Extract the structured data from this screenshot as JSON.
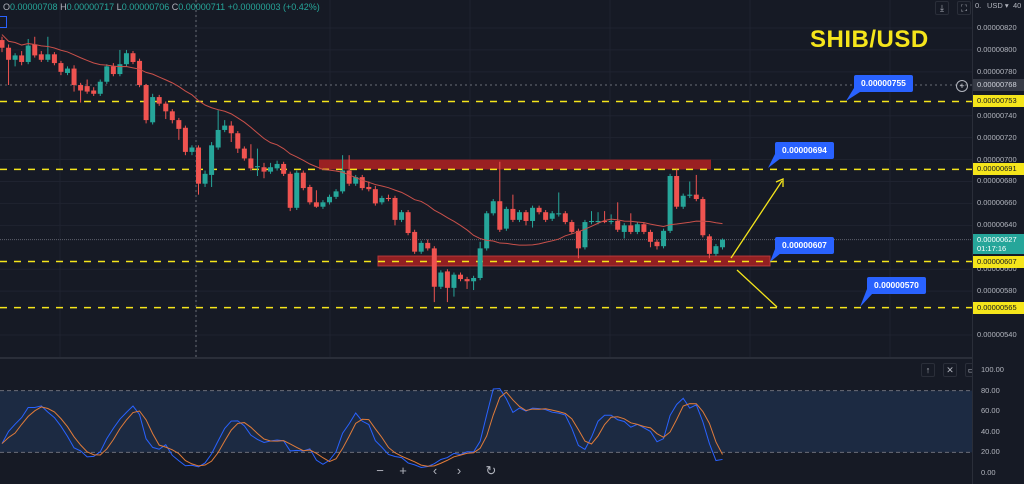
{
  "header": {
    "ohlc": {
      "o_label": "O",
      "o": "0.00000708",
      "h_label": "H",
      "h": "0.00000717",
      "l_label": "L",
      "l": "0.00000706",
      "c_label": "C",
      "c": "0.00000711",
      "change": "+0.00000003 (+0.42%)"
    },
    "currency": "USD ▾",
    "axis_top_left": "0.",
    "axis_top_right": "40"
  },
  "title": "SHIB/USD",
  "colors": {
    "background": "#161a25",
    "up": "#26a69a",
    "down": "#ef5350",
    "ma": "#c9504a",
    "level": "#f5e51b",
    "callout": "#2962ff",
    "zone": "#b22222",
    "stoch_k": "#2962ff",
    "stoch_d": "#e07b39",
    "stoch_band": "#1c2a42"
  },
  "chart_data": [
    {
      "type": "candlestick",
      "title": "SHIB/USD",
      "ylim": [
        5.3e-06,
        8.4e-06
      ],
      "y_ticks": [
        "0.00000820",
        "0.00000800",
        "0.00000780",
        "0.00000740",
        "0.00000720",
        "0.00000700",
        "0.00000680",
        "0.00000660",
        "0.00000640",
        "0.00000600",
        "0.00000580",
        "0.00000540"
      ],
      "y_ticks_values": [
        8.2e-06,
        8e-06,
        7.8e-06,
        7.4e-06,
        7.2e-06,
        7e-06,
        6.8e-06,
        6.6e-06,
        6.4e-06,
        6e-06,
        5.8e-06,
        5.4e-06
      ],
      "ohlc": [
        [
          8.09e-06,
          8.12e-06,
          7.98e-06,
          8.02e-06
        ],
        [
          8.02e-06,
          8.05e-06,
          7.68e-06,
          7.91e-06
        ],
        [
          7.91e-06,
          7.97e-06,
          7.85e-06,
          7.95e-06
        ],
        [
          7.95e-06,
          7.99e-06,
          7.86e-06,
          7.89e-06
        ],
        [
          7.89e-06,
          8.1e-06,
          7.87e-06,
          8.04e-06
        ],
        [
          8.05e-06,
          8.12e-06,
          7.93e-06,
          7.95e-06
        ],
        [
          7.96e-06,
          7.99e-06,
          7.89e-06,
          7.91e-06
        ],
        [
          7.91e-06,
          8.12e-06,
          7.89e-06,
          7.96e-06
        ],
        [
          7.96e-06,
          7.98e-06,
          7.86e-06,
          7.88e-06
        ],
        [
          7.88e-06,
          7.9e-06,
          7.77e-06,
          7.8e-06
        ],
        [
          7.79e-06,
          7.85e-06,
          7.77e-06,
          7.83e-06
        ],
        [
          7.83e-06,
          7.86e-06,
          7.62e-06,
          7.68e-06
        ],
        [
          7.68e-06,
          7.7e-06,
          7.52e-06,
          7.63e-06
        ],
        [
          7.67e-06,
          7.73e-06,
          7.6e-06,
          7.62e-06
        ],
        [
          7.63e-06,
          7.66e-06,
          7.58e-06,
          7.6e-06
        ],
        [
          7.6e-06,
          7.73e-06,
          7.58e-06,
          7.71e-06
        ],
        [
          7.71e-06,
          7.87e-06,
          7.69e-06,
          7.85e-06
        ],
        [
          7.85e-06,
          7.88e-06,
          7.76e-06,
          7.78e-06
        ],
        [
          7.78e-06,
          8e-06,
          7.76e-06,
          7.87e-06
        ],
        [
          7.87e-06,
          8e-06,
          7.85e-06,
          7.97e-06
        ],
        [
          7.97e-06,
          7.99e-06,
          7.87e-06,
          7.89e-06
        ],
        [
          7.9e-06,
          7.92e-06,
          7.66e-06,
          7.68e-06
        ],
        [
          7.68e-06,
          7.69e-06,
          7.33e-06,
          7.36e-06
        ],
        [
          7.34e-06,
          7.6e-06,
          7.32e-06,
          7.57e-06
        ],
        [
          7.57e-06,
          7.59e-06,
          7.49e-06,
          7.51e-06
        ],
        [
          7.51e-06,
          7.53e-06,
          7.37e-06,
          7.44e-06
        ],
        [
          7.44e-06,
          7.46e-06,
          7.33e-06,
          7.36e-06
        ],
        [
          7.36e-06,
          7.38e-06,
          7.18e-06,
          7.28e-06
        ],
        [
          7.29e-06,
          7.31e-06,
          7.04e-06,
          7.07e-06
        ],
        [
          7.07e-06,
          7.13e-06,
          7.04e-06,
          7.11e-06
        ],
        [
          7.11e-06,
          7.13e-06,
          6.68e-06,
          6.78e-06
        ],
        [
          6.78e-06,
          6.9e-06,
          6.75e-06,
          6.87e-06
        ],
        [
          6.86e-06,
          7.16e-06,
          6.75e-06,
          7.13e-06
        ],
        [
          7.11e-06,
          7.45e-06,
          7.09e-06,
          7.27e-06
        ],
        [
          7.27e-06,
          7.36e-06,
          7.25e-06,
          7.31e-06
        ],
        [
          7.31e-06,
          7.35e-06,
          7.16e-06,
          7.24e-06
        ],
        [
          7.24e-06,
          7.26e-06,
          7.06e-06,
          7.1e-06
        ],
        [
          7.1e-06,
          7.12e-06,
          6.99e-06,
          7.01e-06
        ],
        [
          7.01e-06,
          7.14e-06,
          6.9e-06,
          6.92e-06
        ],
        [
          6.93e-06,
          7.1e-06,
          6.85e-06,
          6.94e-06
        ],
        [
          6.93e-06,
          6.97e-06,
          6.83e-06,
          6.89e-06
        ],
        [
          6.89e-06,
          6.97e-06,
          6.87e-06,
          6.93e-06
        ],
        [
          6.92e-06,
          6.99e-06,
          6.9e-06,
          6.96e-06
        ],
        [
          6.96e-06,
          6.98e-06,
          6.85e-06,
          6.87e-06
        ],
        [
          6.87e-06,
          6.89e-06,
          6.53e-06,
          6.56e-06
        ],
        [
          6.56e-06,
          6.9e-06,
          6.54e-06,
          6.88e-06
        ],
        [
          6.88e-06,
          6.9e-06,
          6.72e-06,
          6.74e-06
        ],
        [
          6.75e-06,
          6.77e-06,
          6.59e-06,
          6.61e-06
        ],
        [
          6.61e-06,
          6.72e-06,
          6.56e-06,
          6.57e-06
        ],
        [
          6.57e-06,
          6.63e-06,
          6.55e-06,
          6.61e-06
        ],
        [
          6.61e-06,
          6.68e-06,
          6.59e-06,
          6.66e-06
        ],
        [
          6.66e-06,
          6.73e-06,
          6.64e-06,
          6.71e-06
        ],
        [
          6.71e-06,
          7.04e-06,
          6.69e-06,
          6.9e-06
        ],
        [
          6.9e-06,
          7.04e-06,
          6.76e-06,
          6.78e-06
        ],
        [
          6.78e-06,
          6.86e-06,
          6.76e-06,
          6.84e-06
        ],
        [
          6.84e-06,
          6.86e-06,
          6.72e-06,
          6.74e-06
        ],
        [
          6.75e-06,
          6.8e-06,
          6.71e-06,
          6.73e-06
        ],
        [
          6.73e-06,
          6.76e-06,
          6.58e-06,
          6.6e-06
        ],
        [
          6.61e-06,
          6.67e-06,
          6.59e-06,
          6.65e-06
        ],
        [
          6.65e-06,
          6.68e-06,
          6.62e-06,
          6.64e-06
        ],
        [
          6.65e-06,
          6.67e-06,
          6.4e-06,
          6.45e-06
        ],
        [
          6.45e-06,
          6.54e-06,
          6.43e-06,
          6.52e-06
        ],
        [
          6.52e-06,
          6.54e-06,
          6.31e-06,
          6.33e-06
        ],
        [
          6.34e-06,
          6.36e-06,
          6.14e-06,
          6.16e-06
        ],
        [
          6.16e-06,
          6.26e-06,
          6.14e-06,
          6.24e-06
        ],
        [
          6.24e-06,
          6.27e-06,
          6.17e-06,
          6.19e-06
        ],
        [
          6.19e-06,
          6.21e-06,
          5.7e-06,
          5.84e-06
        ],
        [
          5.84e-06,
          5.99e-06,
          5.82e-06,
          5.97e-06
        ],
        [
          5.98e-06,
          6e-06,
          5.7e-06,
          5.83e-06
        ],
        [
          5.83e-06,
          5.97e-06,
          5.75e-06,
          5.95e-06
        ],
        [
          5.95e-06,
          5.97e-06,
          5.89e-06,
          5.91e-06
        ],
        [
          5.91e-06,
          5.93e-06,
          5.82e-06,
          5.89e-06
        ],
        [
          5.89e-06,
          5.94e-06,
          5.81e-06,
          5.92e-06
        ],
        [
          5.92e-06,
          6.25e-06,
          5.9e-06,
          6.19e-06
        ],
        [
          6.19e-06,
          6.53e-06,
          6.17e-06,
          6.51e-06
        ],
        [
          6.51e-06,
          6.64e-06,
          6.49e-06,
          6.62e-06
        ],
        [
          6.62e-06,
          6.98e-06,
          6.34e-06,
          6.36e-06
        ],
        [
          6.37e-06,
          6.57e-06,
          6.35e-06,
          6.55e-06
        ],
        [
          6.55e-06,
          6.68e-06,
          6.43e-06,
          6.45e-06
        ],
        [
          6.45e-06,
          6.54e-06,
          6.43e-06,
          6.52e-06
        ],
        [
          6.52e-06,
          6.54e-06,
          6.4e-06,
          6.44e-06
        ],
        [
          6.44e-06,
          6.58e-06,
          6.38e-06,
          6.56e-06
        ],
        [
          6.56e-06,
          6.58e-06,
          6.5e-06,
          6.52e-06
        ],
        [
          6.52e-06,
          6.54e-06,
          6.43e-06,
          6.45e-06
        ],
        [
          6.46e-06,
          6.53e-06,
          6.44e-06,
          6.51e-06
        ],
        [
          6.5e-06,
          6.7e-06,
          6.48e-06,
          6.51e-06
        ],
        [
          6.51e-06,
          6.53e-06,
          6.41e-06,
          6.43e-06
        ],
        [
          6.43e-06,
          6.45e-06,
          6.32e-06,
          6.34e-06
        ],
        [
          6.35e-06,
          6.37e-06,
          6.1e-06,
          6.19e-06
        ],
        [
          6.2e-06,
          6.45e-06,
          6.18e-06,
          6.43e-06
        ],
        [
          6.43e-06,
          6.53e-06,
          6.41e-06,
          6.44e-06
        ],
        [
          6.43e-06,
          6.52e-06,
          6.41e-06,
          6.44e-06
        ],
        [
          6.44e-06,
          6.53e-06,
          6.42e-06,
          6.43e-06
        ],
        [
          6.43e-06,
          6.5e-06,
          6.41e-06,
          6.44e-06
        ],
        [
          6.44e-06,
          6.61e-06,
          6.34e-06,
          6.36e-06
        ],
        [
          6.34e-06,
          6.42e-06,
          6.28e-06,
          6.4e-06
        ],
        [
          6.4e-06,
          6.51e-06,
          6.32e-06,
          6.34e-06
        ],
        [
          6.34e-06,
          6.43e-06,
          6.32e-06,
          6.41e-06
        ],
        [
          6.41e-06,
          6.43e-06,
          6.32e-06,
          6.34e-06
        ],
        [
          6.34e-06,
          6.36e-06,
          6.2e-06,
          6.25e-06
        ],
        [
          6.25e-06,
          6.27e-06,
          6.18e-06,
          6.21e-06
        ],
        [
          6.21e-06,
          6.37e-06,
          6.19e-06,
          6.35e-06
        ],
        [
          6.35e-06,
          6.87e-06,
          6.33e-06,
          6.85e-06
        ],
        [
          6.85e-06,
          6.91e-06,
          6.55e-06,
          6.57e-06
        ],
        [
          6.57e-06,
          6.69e-06,
          6.55e-06,
          6.67e-06
        ],
        [
          6.67e-06,
          6.8e-06,
          6.65e-06,
          6.68e-06
        ],
        [
          6.68e-06,
          6.86e-06,
          6.62e-06,
          6.64e-06
        ],
        [
          6.64e-06,
          6.66e-06,
          6.29e-06,
          6.31e-06
        ],
        [
          6.3e-06,
          6.32e-06,
          6.1e-06,
          6.14e-06
        ],
        [
          6.14e-06,
          6.23e-06,
          6.12e-06,
          6.21e-06
        ],
        [
          6.2e-06,
          6.28e-06,
          6.18e-06,
          6.27e-06
        ]
      ],
      "moving_average_period": 20,
      "horizontal_levels": [
        7.53e-06,
        6.91e-06,
        6.07e-06,
        5.65e-06
      ],
      "zones": [
        {
          "from": 6.91e-06,
          "to": 7e-06
        },
        {
          "from": 6.03e-06,
          "to": 6.12e-06
        }
      ],
      "price_tags": [
        {
          "text": "0.00000768",
          "value": 7.68e-06,
          "style": "grey"
        },
        {
          "text": "0.00000753",
          "value": 7.53e-06,
          "style": "yellow"
        },
        {
          "text": "0.00000691",
          "value": 6.91e-06,
          "style": "yellow"
        },
        {
          "text": "0.00000627",
          "value": 6.27e-06,
          "style": "green",
          "sub": "01:17:16"
        },
        {
          "text": "0.00000607",
          "value": 6.07e-06,
          "style": "yellow"
        },
        {
          "text": "0.00000565",
          "value": 5.65e-06,
          "style": "yellow"
        }
      ],
      "callouts": [
        {
          "text": "0.00000755",
          "value": 7.55e-06
        },
        {
          "text": "0.00000694",
          "value": 6.94e-06
        },
        {
          "text": "0.00000607",
          "value": 6.07e-06
        },
        {
          "text": "0.00000570",
          "value": 5.7e-06
        }
      ]
    },
    {
      "type": "line",
      "indicator": "stochastic",
      "ylim": [
        0,
        100
      ],
      "y_ticks": [
        "100.00",
        "80.00",
        "60.00",
        "40.00",
        "20.00",
        "0.00"
      ],
      "y_ticks_values": [
        100,
        80,
        60,
        40,
        20,
        0
      ],
      "band": [
        20,
        80
      ],
      "k_period": 14,
      "k_smooth": 3,
      "d_smooth": 3
    }
  ],
  "controls": {
    "zoom_out": "−",
    "zoom_in": "+",
    "scroll_left": "‹",
    "scroll_right": "›",
    "reset": "↻",
    "pane_up": "↑",
    "pane_close": "✕",
    "pane_max": "▭",
    "download": "⤓",
    "fullscreen": "⛶",
    "crosshair_add": "+"
  }
}
